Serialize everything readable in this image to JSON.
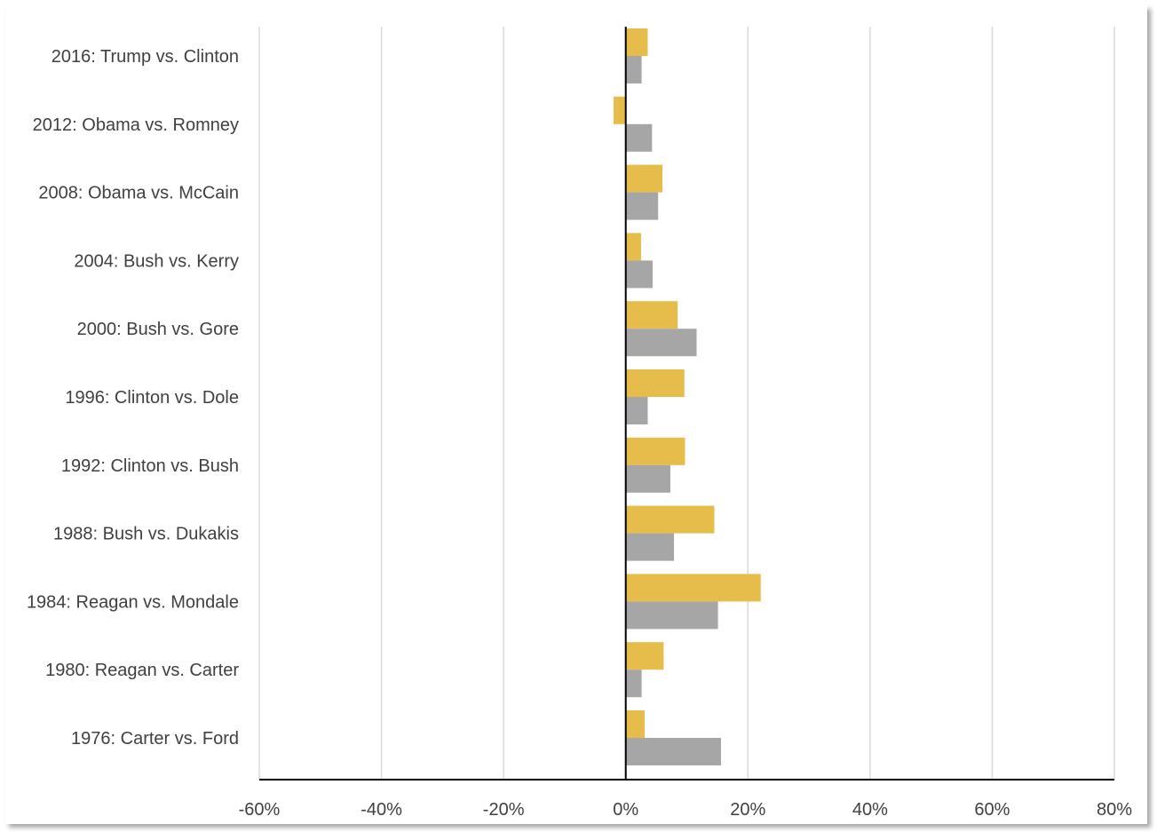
{
  "chart_data": {
    "type": "bar",
    "orientation": "horizontal",
    "title": "",
    "xlabel": "",
    "ylabel": "",
    "xlim": [
      -60,
      80
    ],
    "x_tick_step": 20,
    "tick_suffix": "%",
    "grid": true,
    "legend": "none",
    "categories": [
      "2016: Trump vs. Clinton",
      "2012: Obama vs. Romney",
      "2008: Obama vs. McCain",
      "2004: Bush vs. Kerry",
      "2000: Bush vs. Gore",
      "1996: Clinton vs. Dole",
      "1992: Clinton vs. Bush",
      "1988: Bush vs. Dukakis",
      "1984: Reagan vs. Mondale",
      "1980: Reagan vs. Carter",
      "1976: Carter vs. Ford"
    ],
    "series": [
      {
        "color": "#E6BC4A",
        "values": [
          3.6,
          -2.0,
          6.0,
          2.5,
          8.5,
          9.6,
          9.7,
          14.5,
          22.1,
          6.2,
          3.1
        ]
      },
      {
        "color": "#A6A6A6",
        "values": [
          2.6,
          4.3,
          5.3,
          4.4,
          11.6,
          3.6,
          7.3,
          7.9,
          15.1,
          2.6,
          15.6
        ]
      }
    ]
  }
}
